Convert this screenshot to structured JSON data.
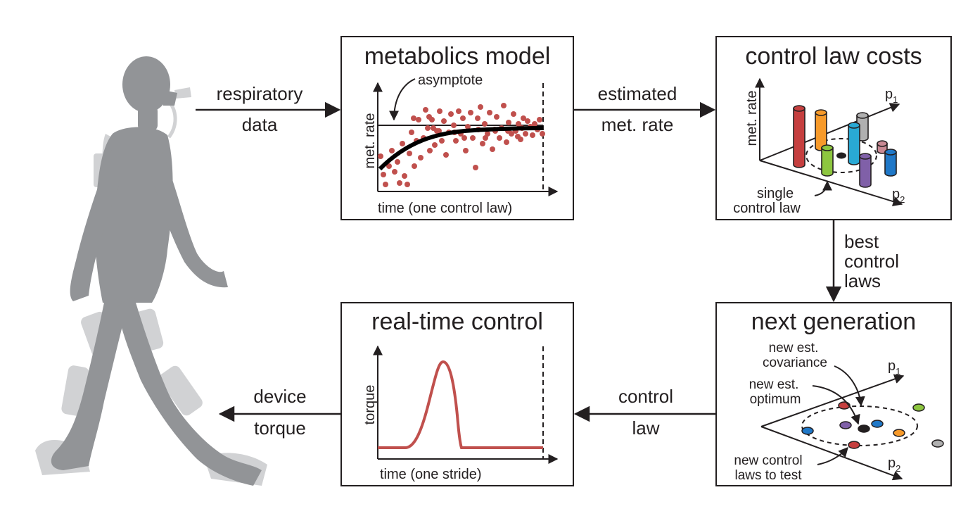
{
  "flow_labels": {
    "respiratory_1": "respiratory",
    "respiratory_2": "data",
    "estimated_1": "estimated",
    "estimated_2": "met. rate",
    "best_1": "best",
    "best_2": "control",
    "best_3": "laws",
    "control_1": "control",
    "control_2": "law",
    "device_1": "device",
    "device_2": "torque"
  },
  "metabolics": {
    "title": "metabolics model",
    "annotation": "asymptote",
    "ylabel": "met. rate",
    "xlabel": "time (one control law)"
  },
  "costs": {
    "title": "control law costs",
    "ylabel": "met. rate",
    "p1": "p",
    "p1_sub": "1",
    "p2": "p",
    "p2_sub": "2",
    "single_1": "single",
    "single_2": "control law"
  },
  "next_gen": {
    "title": "next generation",
    "cov_1": "new est.",
    "cov_2": "covariance",
    "opt_1": "new est.",
    "opt_2": "optimum",
    "new_1": "new control",
    "new_2": "laws to test",
    "p1": "p",
    "p1_sub": "1",
    "p2": "p",
    "p2_sub": "2"
  },
  "realtime": {
    "title": "real-time control",
    "ylabel": "torque",
    "xlabel": "time (one stride)"
  },
  "colors": {
    "ink": "#231f20",
    "figure": "#929497",
    "device": "#d1d2d4",
    "scatter": "#c0504d",
    "torque_curve": "#c0504d",
    "red": "#c53f3f",
    "orange": "#f79a2a",
    "grey": "#b0b0b0",
    "cyan": "#29a9d4",
    "pink": "#c98a94",
    "green": "#8dc63f",
    "purple": "#8060a8",
    "blue": "#1f78c8"
  }
}
